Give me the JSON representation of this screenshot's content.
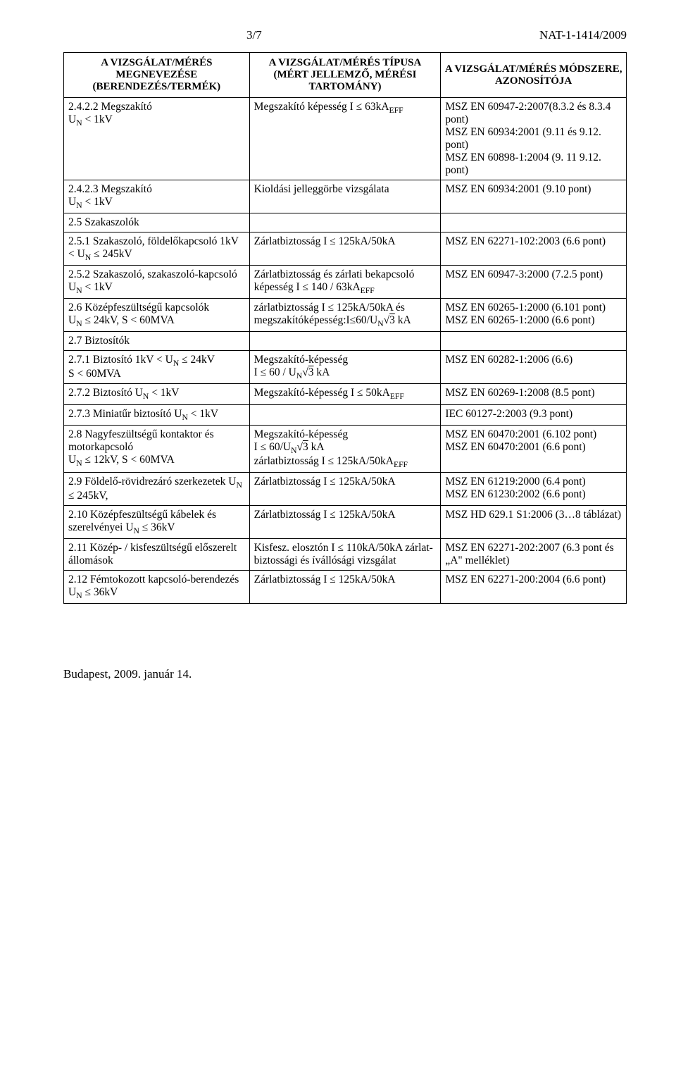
{
  "header": {
    "page_number": "3/7",
    "doc_id": "NAT-1-1414/2009"
  },
  "table_headers": {
    "col1": "A VIZSGÁLAT/MÉRÉS MEGNEVEZÉSE (BERENDEZÉS/TERMÉK)",
    "col2": "A VIZSGÁLAT/MÉRÉS TÍPUSA (MÉRT JELLEMZŐ, MÉRÉSI TARTOMÁNY)",
    "col3": "A VIZSGÁLAT/MÉRÉS MÓDSZERE, AZONOSÍTÓJA"
  },
  "rows": [
    {
      "c1": "2.4.2.2 Megszakító\n    Uₙ < 1kV",
      "c2": "Megszakító képesség I ≤ 63kA_EFF",
      "c3": "MSZ EN 60947-2:2007(8.3.2 és 8.3.4 pont)\nMSZ EN 60934:2001 (9.11 és 9.12. pont)\nMSZ EN 60898-1:2004 (9. 11 9.12. pont)"
    },
    {
      "c1": "2.4.2.3 Megszakító\n    Uₙ < 1kV",
      "c2": "Kioldási jelleggörbe vizsgálata",
      "c3": "MSZ EN 60934:2001 (9.10 pont)"
    },
    {
      "c1": "2.5   Szakaszolók",
      "c2": "",
      "c3": ""
    },
    {
      "c1": "2.5.1   Szakaszoló, földelőkapcsoló 1kV < Uₙ ≤ 245kV",
      "c2": "Zárlatbiztosság  I ≤ 125kA/50kA",
      "c3": "MSZ EN 62271-102:2003 (6.6 pont)"
    },
    {
      "c1": "2.5.2   Szakaszoló, szakaszoló-kapcsoló Uₙ < 1kV",
      "c2": "Zárlatbiztosság és zárlati bekapcsoló képesség I ≤ 140 / 63kA_EFF",
      "c3": "MSZ EN 60947-3:2000 (7.2.5 pont)"
    },
    {
      "c1": "2.6   Középfeszültségű kapcsolók\n   Uₙ ≤ 24kV, S < 60MVA",
      "c2": "zárlatbiztosság I ≤ 125kA/50kA és\nmegszakítóképesség:I≤60/Uₙ√3 kA",
      "c3": "MSZ EN 60265-1:2000 (6.101 pont)\nMSZ EN 60265-1:2000 (6.6 pont)"
    },
    {
      "c1": "2.7   Biztosítók",
      "c2": "",
      "c3": ""
    },
    {
      "c1": "2.7.1   Biztosító 1kV < Uₙ ≤ 24kV\n   S < 60MVA",
      "c2": "Megszakító-képesség\n       I ≤ 60 / Uₙ√3 kA",
      "c3": "MSZ EN 60282-1:2006 (6.6)"
    },
    {
      "c1": "2.7.2   Biztosító Uₙ < 1kV",
      "c2": "Megszakító-képesség  I ≤ 50kA_EFF",
      "c3": "MSZ EN 60269-1:2008 (8.5 pont)"
    },
    {
      "c1": "2.7.3   Miniatűr biztosító Uₙ < 1kV",
      "c2": "",
      "c3": "IEC 60127-2:2003 (9.3 pont)"
    },
    {
      "c1": "2.8   Nagyfeszültségű kontaktor és motorkapcsoló\n   Uₙ ≤ 12kV, S < 60MVA",
      "c2": "Megszakító-képesség\n I ≤ 60/Uₙ√3 kA\nzárlatbiztosság I ≤ 125kA/50kA_EFF",
      "c3": "MSZ EN 60470:2001 (6.102 pont)\nMSZ EN 60470:2001 (6.6 pont)"
    },
    {
      "c1": "2.9   Földelő-rövidrezáró szerkezetek   Uₙ ≤ 245kV,",
      "c2": "Zárlatbiztosság I ≤ 125kA/50kA",
      "c3": "MSZ EN 61219:2000 (6.4 pont)\nMSZ EN 61230:2002 (6.6 pont)"
    },
    {
      "c1": "2.10  Középfeszültségű kábelek és szerelvényei Uₙ ≤ 36kV",
      "c2": "Zárlatbiztosság I ≤ 125kA/50kA",
      "c3": "MSZ HD 629.1 S1:2006 (3…8 táblázat)"
    },
    {
      "c1": "2.11  Közép- / kisfeszültségű előszerelt állomások",
      "c2": "Kisfesz. elosztón I ≤ 110kA/50kA zárlat-biztossági és ívállósági vizsgálat",
      "c3": "MSZ EN 62271-202:2007 (6.3 pont és „A\" melléklet)"
    },
    {
      "c1": "2.12  Fémtokozott kapcsoló-berendezés  Uₙ ≤ 36kV",
      "c2": "Zárlatbiztosság I ≤ 125kA/50kA",
      "c3": "MSZ EN 62271-200:2004 (6.6 pont)"
    }
  ],
  "footer": "Budapest, 2009. január 14."
}
